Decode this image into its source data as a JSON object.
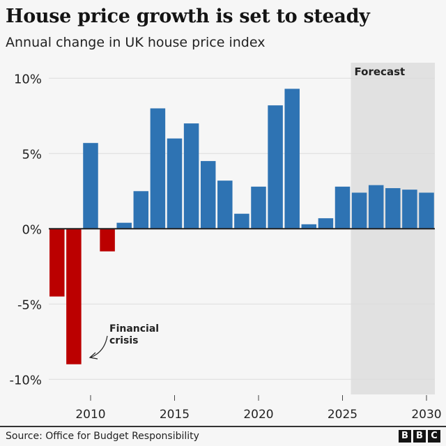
{
  "title": "House price growth is set to steady",
  "subtitle": "Annual change in UK house price index",
  "source": "Source: Office for Budget Responsibility",
  "logo": [
    "B",
    "B",
    "C"
  ],
  "chart_data": {
    "type": "bar",
    "title": "House price growth is set to steady",
    "subtitle": "Annual change in UK house price index",
    "xlabel": "",
    "ylabel": "",
    "ylim": [
      -10,
      10
    ],
    "xlim": [
      2008,
      2030
    ],
    "yticks": [
      10,
      5,
      0,
      -5,
      -10
    ],
    "ytick_labels": [
      "10%",
      "5%",
      "0%",
      "-5%",
      "-10%"
    ],
    "xticks": [
      2010,
      2015,
      2020,
      2025,
      2030
    ],
    "xtick_labels": [
      "2010",
      "2015",
      "2020",
      "2025",
      "2030"
    ],
    "grid": "horizontal",
    "categories": [
      2008,
      2009,
      2010,
      2011,
      2012,
      2013,
      2014,
      2015,
      2016,
      2017,
      2018,
      2019,
      2020,
      2021,
      2022,
      2023,
      2024,
      2025,
      2026,
      2027,
      2028,
      2029,
      2030
    ],
    "values": [
      -4.5,
      -9.0,
      5.7,
      -1.5,
      0.4,
      2.5,
      8.0,
      6.0,
      7.0,
      4.5,
      3.2,
      1.0,
      2.8,
      8.2,
      9.3,
      0.3,
      0.7,
      2.8,
      2.4,
      2.9,
      2.7,
      2.6,
      2.4
    ],
    "colors": {
      "positive": "#2e73b3",
      "negative": "#bb0000",
      "forecast_shade": "#e1e1e1",
      "grid": "#dcdcdc"
    },
    "forecast": {
      "label": "Forecast",
      "from": 2026,
      "to": 2030
    },
    "annotations": [
      {
        "text": "Financial crisis",
        "target_year": 2009
      }
    ]
  }
}
